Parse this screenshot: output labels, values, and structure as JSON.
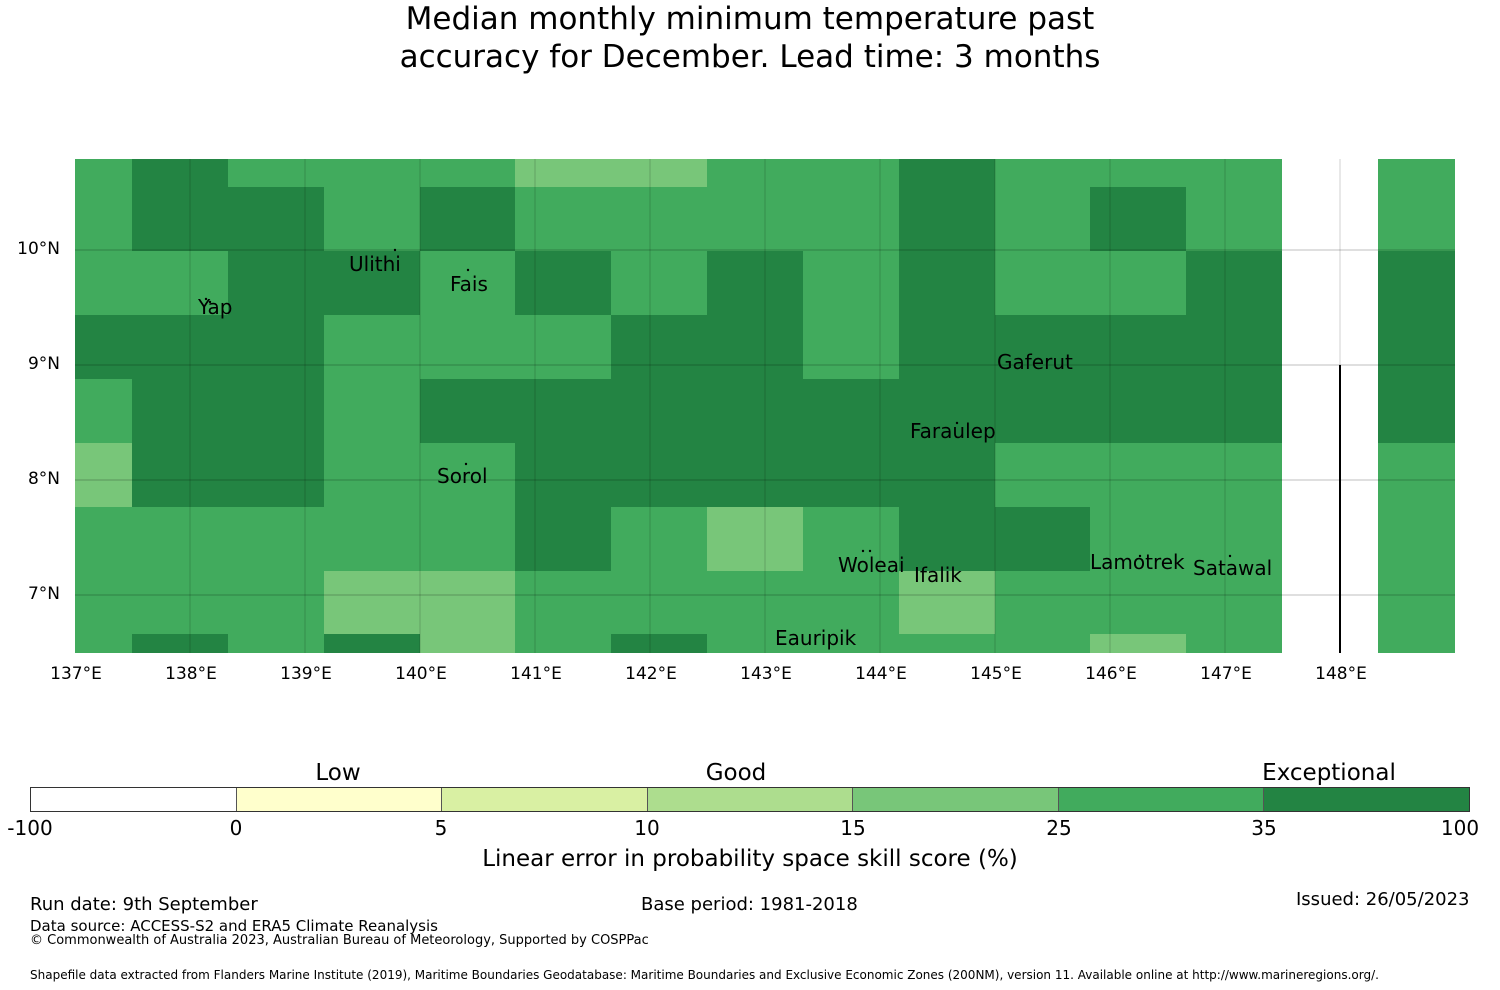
{
  "title": {
    "line1": "Median monthly minimum temperature past",
    "line2": "accuracy for December. Lead time: 3 months"
  },
  "map": {
    "lat_labels": [
      "10°N",
      "9°N",
      "8°N",
      "7°N"
    ],
    "lon_labels": [
      "137°E",
      "138°E",
      "139°E",
      "140°E",
      "141°E",
      "142°E",
      "143°E",
      "144°E",
      "145°E",
      "146°E",
      "147°E",
      "148°E"
    ],
    "places": [
      "Ulithi",
      "Fais",
      "Yap",
      "Gaferut",
      "Faraulep",
      "Sorol",
      "Woleai",
      "Ifalik",
      "Lamotrek",
      "Satawal",
      "Eauripik"
    ],
    "skill_grid_categories": [
      [
        5,
        6,
        5,
        5,
        5,
        4,
        4,
        5,
        5,
        6,
        5,
        5,
        5
      ],
      [
        5,
        6,
        6,
        5,
        6,
        5,
        5,
        5,
        5,
        6,
        5,
        6,
        5
      ],
      [
        5,
        5,
        6,
        6,
        5,
        6,
        5,
        6,
        5,
        6,
        5,
        5,
        6
      ],
      [
        6,
        6,
        6,
        5,
        5,
        5,
        6,
        6,
        5,
        6,
        6,
        6,
        6
      ],
      [
        5,
        6,
        6,
        5,
        6,
        6,
        6,
        6,
        6,
        6,
        6,
        6,
        6
      ],
      [
        4,
        6,
        6,
        5,
        5,
        6,
        6,
        6,
        6,
        6,
        5,
        5,
        5
      ],
      [
        5,
        5,
        5,
        5,
        5,
        6,
        5,
        4,
        5,
        6,
        6,
        5,
        5
      ],
      [
        5,
        5,
        5,
        4,
        4,
        5,
        5,
        5,
        5,
        4,
        5,
        5,
        5
      ],
      [
        5,
        6,
        5,
        6,
        4,
        5,
        6,
        5,
        5,
        5,
        5,
        4,
        5
      ]
    ]
  },
  "colorbar": {
    "colors": [
      "#ffffff",
      "#ffffcc",
      "#d9f0a3",
      "#addd8e",
      "#78c679",
      "#41ab5d",
      "#238443"
    ],
    "ticks": [
      "-100",
      "0",
      "5",
      "10",
      "15",
      "25",
      "35",
      "100"
    ],
    "categories": [
      "Low",
      "Good",
      "Exceptional"
    ],
    "label": "Linear error in probability space skill score (%)"
  },
  "footer": {
    "run_date": "Run date: 9th September",
    "base_period": "Base period: 1981-2018",
    "issued": "Issued: 26/05/2023",
    "data_source": "Data source: ACCESS-S2 and ERA5 Climate Reanalysis",
    "copyright": "© Commonwealth of Australia 2023, Australian Bureau of Meteorology, Supported by COSPPac",
    "shapefile": "Shapefile data extracted from Flanders Marine Institute (2019), Maritime Boundaries Geodatabase: Maritime Boundaries and Exclusive Economic Zones (200NM), version 11. Available online at http://www.marineregions.org/."
  }
}
